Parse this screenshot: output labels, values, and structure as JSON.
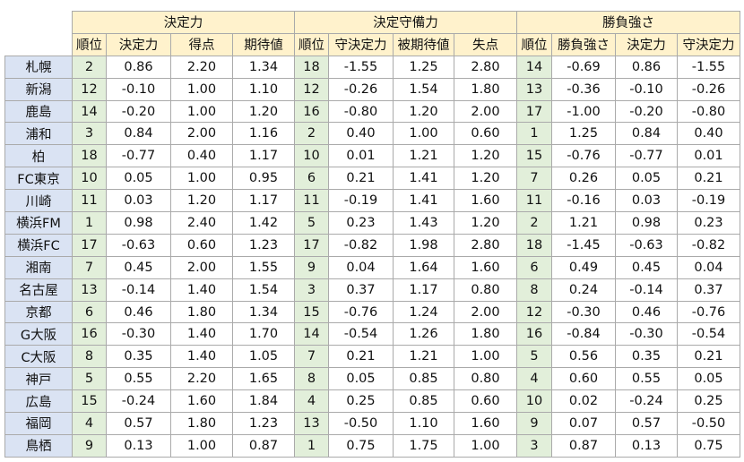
{
  "groups": [
    "決定力",
    "決定守備力",
    "勝負強さ"
  ],
  "subheaders": [
    "順位",
    "決定力",
    "得点",
    "期待値",
    "順位",
    "守決定力",
    "被期待値",
    "失点",
    "順位",
    "勝負強さ",
    "決定力",
    "守決定力"
  ],
  "rows": [
    [
      "札幌",
      "2",
      "0.86",
      "2.20",
      "1.34",
      "18",
      "-1.55",
      "1.25",
      "2.80",
      "14",
      "-0.69",
      "0.86",
      "-1.55"
    ],
    [
      "新潟",
      "12",
      "-0.10",
      "1.00",
      "1.10",
      "12",
      "-0.26",
      "1.54",
      "1.80",
      "13",
      "-0.36",
      "-0.10",
      "-0.26"
    ],
    [
      "鹿島",
      "14",
      "-0.20",
      "1.00",
      "1.20",
      "16",
      "-0.80",
      "1.20",
      "2.00",
      "17",
      "-1.00",
      "-0.20",
      "-0.80"
    ],
    [
      "浦和",
      "3",
      "0.84",
      "2.00",
      "1.16",
      "2",
      "0.40",
      "1.00",
      "0.60",
      "1",
      "1.25",
      "0.84",
      "0.40"
    ],
    [
      "柏",
      "18",
      "-0.77",
      "0.40",
      "1.17",
      "10",
      "0.01",
      "1.21",
      "1.20",
      "15",
      "-0.76",
      "-0.77",
      "0.01"
    ],
    [
      "FC東京",
      "10",
      "0.05",
      "1.00",
      "0.95",
      "6",
      "0.21",
      "1.41",
      "1.20",
      "7",
      "0.26",
      "0.05",
      "0.21"
    ],
    [
      "川崎",
      "11",
      "0.03",
      "1.20",
      "1.17",
      "11",
      "-0.19",
      "1.41",
      "1.60",
      "11",
      "-0.16",
      "0.03",
      "-0.19"
    ],
    [
      "横浜FM",
      "1",
      "0.98",
      "2.40",
      "1.42",
      "5",
      "0.23",
      "1.43",
      "1.20",
      "2",
      "1.21",
      "0.98",
      "0.23"
    ],
    [
      "横浜FC",
      "17",
      "-0.63",
      "0.60",
      "1.23",
      "17",
      "-0.82",
      "1.98",
      "2.80",
      "18",
      "-1.45",
      "-0.63",
      "-0.82"
    ],
    [
      "湘南",
      "7",
      "0.45",
      "2.00",
      "1.55",
      "9",
      "0.04",
      "1.64",
      "1.60",
      "6",
      "0.49",
      "0.45",
      "0.04"
    ],
    [
      "名古屋",
      "13",
      "-0.14",
      "1.40",
      "1.54",
      "3",
      "0.37",
      "1.17",
      "0.80",
      "8",
      "0.24",
      "-0.14",
      "0.37"
    ],
    [
      "京都",
      "6",
      "0.46",
      "1.80",
      "1.34",
      "15",
      "-0.76",
      "1.24",
      "2.00",
      "12",
      "-0.30",
      "0.46",
      "-0.76"
    ],
    [
      "G大阪",
      "16",
      "-0.30",
      "1.40",
      "1.70",
      "14",
      "-0.54",
      "1.26",
      "1.80",
      "16",
      "-0.84",
      "-0.30",
      "-0.54"
    ],
    [
      "C大阪",
      "8",
      "0.35",
      "1.40",
      "1.05",
      "7",
      "0.21",
      "1.21",
      "1.00",
      "5",
      "0.56",
      "0.35",
      "0.21"
    ],
    [
      "神戸",
      "5",
      "0.55",
      "2.20",
      "1.65",
      "8",
      "0.05",
      "0.85",
      "0.80",
      "4",
      "0.60",
      "0.55",
      "0.05"
    ],
    [
      "広島",
      "15",
      "-0.24",
      "1.60",
      "1.84",
      "4",
      "0.25",
      "0.85",
      "0.60",
      "10",
      "0.02",
      "-0.24",
      "0.25"
    ],
    [
      "福岡",
      "4",
      "0.57",
      "1.80",
      "1.23",
      "13",
      "-0.50",
      "1.10",
      "1.60",
      "9",
      "0.07",
      "0.57",
      "-0.50"
    ],
    [
      "鳥栖",
      "9",
      "0.13",
      "1.00",
      "0.87",
      "1",
      "0.75",
      "1.75",
      "1.00",
      "3",
      "0.87",
      "0.13",
      "0.75"
    ]
  ],
  "colors": {
    "header_fill": "#fff2cc",
    "rank_fill": "#e2efda",
    "team_fill": "#dae3f3",
    "gridline": "#aaaaaa"
  }
}
